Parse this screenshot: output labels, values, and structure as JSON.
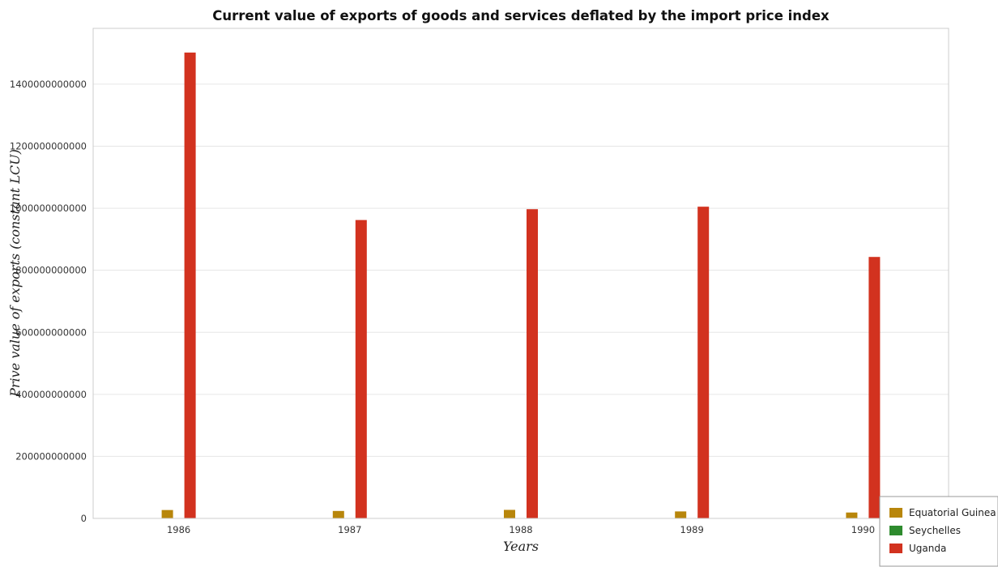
{
  "chart_data": {
    "type": "bar",
    "title": "Current value of exports of goods and services deflated by the import price index",
    "xlabel": "Years",
    "ylabel": "Prive value of exports (constant LCU)",
    "categories": [
      "1986",
      "1987",
      "1988",
      "1989",
      "1990"
    ],
    "series": [
      {
        "name": "Equatorial Guinea",
        "color": "#b8860b",
        "values": [
          27000000000,
          24000000000,
          27500000000,
          22500000000,
          19000000000
        ]
      },
      {
        "name": "Seychelles",
        "color": "#2e8b2e",
        "values": [
          800000000,
          850000000,
          900000000,
          950000000,
          1000000000
        ]
      },
      {
        "name": "Uganda",
        "color": "#d2321f",
        "values": [
          1502000000000,
          962000000000,
          997000000000,
          1005000000000,
          843000000000
        ]
      }
    ],
    "yticks": [
      0,
      200000000000,
      400000000000,
      600000000000,
      800000000000,
      1000000000000,
      1200000000000,
      1400000000000
    ],
    "ytick_labels": [
      "0",
      "200000000000",
      "400000000000",
      "600000000000",
      "800000000000",
      "1000000000000",
      "1200000000000",
      "1400000000000"
    ],
    "ylim": [
      0,
      1580000000000
    ],
    "grid": true,
    "legend_position": "bottom-right"
  }
}
